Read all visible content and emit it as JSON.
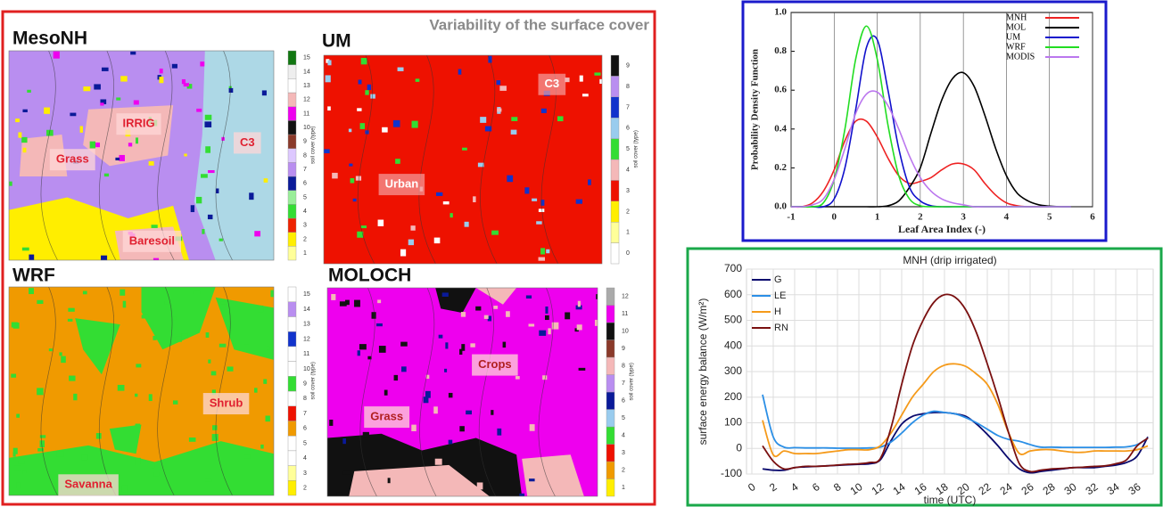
{
  "title": "Variability of the surface cover",
  "maps": [
    {
      "name": "MesoNH",
      "regions": [
        "IRRIG",
        "Grass",
        "C3",
        "Baresoil"
      ],
      "colorbar_label": "soil cover (type)",
      "ticks": [
        1,
        2,
        3,
        4,
        5,
        6,
        7,
        8,
        9,
        10,
        11,
        12,
        13,
        14,
        15
      ],
      "colors": [
        "#ffff99",
        "#ffee00",
        "#ee2200",
        "#33dd33",
        "#99ee99",
        "#0a1a99",
        "#b98ef0",
        "#ddc8ff",
        "#8a3a2a",
        "#111111",
        "#ee00ee",
        "#f4b8b8",
        "#ffffff",
        "#eeeeee",
        "#117711"
      ]
    },
    {
      "name": "UM",
      "regions": [
        "C3",
        "Urban"
      ],
      "colorbar_label": "soil cover (type)",
      "ticks": [
        0,
        1,
        2,
        3,
        4,
        5,
        6,
        7,
        8,
        9
      ],
      "colors": [
        "#ffffff",
        "#ffff99",
        "#ffee00",
        "#ee1100",
        "#f4b8b8",
        "#33dd33",
        "#99ccee",
        "#1133cc",
        "#b98ef0",
        "#111111"
      ]
    },
    {
      "name": "WRF",
      "regions": [
        "Shrub",
        "Savanna"
      ],
      "colorbar_label": "soil cover (type)",
      "ticks": [
        2,
        3,
        4,
        5,
        6,
        7,
        8,
        9,
        10,
        11,
        12,
        13,
        14,
        15
      ],
      "colors": [
        "#ffee00",
        "#ffff99",
        "#ffffff",
        "#ffffff",
        "#f09a00",
        "#ee1100",
        "#ffffff",
        "#33dd33",
        "#ffffff",
        "#ffffff",
        "#1133cc",
        "#ffffff",
        "#b98ef0",
        "#ffffff"
      ]
    },
    {
      "name": "MOLOCH",
      "regions": [
        "Crops",
        "Grass"
      ],
      "colorbar_label": "soil cover (type)",
      "ticks": [
        1,
        2,
        3,
        4,
        5,
        6,
        7,
        8,
        9,
        10,
        11,
        12
      ],
      "colors": [
        "#ffee00",
        "#f09a00",
        "#ee1100",
        "#33dd33",
        "#99ccee",
        "#0a1a99",
        "#b98ef0",
        "#f4b8b8",
        "#8a3a2a",
        "#111111",
        "#ee00ee",
        "#aaaaaa"
      ]
    }
  ],
  "chart_data": [
    {
      "type": "line",
      "xlabel": "Leaf Area Index (-)",
      "ylabel": "Probability Density Function",
      "x": [
        -1,
        -0.75,
        -0.5,
        -0.25,
        0,
        0.25,
        0.5,
        0.75,
        1,
        1.25,
        1.5,
        1.75,
        2,
        2.25,
        2.5,
        2.75,
        3,
        3.25,
        3.5,
        3.75,
        4,
        4.25,
        4.5,
        4.75,
        5,
        5.25,
        5.5
      ],
      "series": [
        {
          "name": "MNH",
          "color": "#ee2222",
          "values": [
            0,
            0,
            0.02,
            0.08,
            0.19,
            0.34,
            0.44,
            0.44,
            0.36,
            0.25,
            0.16,
            0.12,
            0.13,
            0.15,
            0.19,
            0.22,
            0.22,
            0.19,
            0.12,
            0.06,
            0.02,
            0.005,
            0,
            0,
            0,
            0,
            0
          ]
        },
        {
          "name": "MOL",
          "color": "#000000",
          "values": [
            0,
            0,
            0,
            0,
            0,
            0,
            0,
            0,
            0,
            0.005,
            0.03,
            0.1,
            0.2,
            0.38,
            0.55,
            0.66,
            0.69,
            0.62,
            0.47,
            0.3,
            0.16,
            0.07,
            0.03,
            0.01,
            0.003,
            0,
            0
          ]
        },
        {
          "name": "UM",
          "color": "#1111cc",
          "values": [
            0,
            0,
            0,
            0,
            0.04,
            0.2,
            0.5,
            0.82,
            0.86,
            0.6,
            0.3,
            0.1,
            0.03,
            0.005,
            0,
            0,
            0,
            0,
            0,
            0,
            0,
            0,
            0,
            0,
            0,
            0,
            0
          ]
        },
        {
          "name": "WRF",
          "color": "#22dd22",
          "values": [
            0,
            0,
            0,
            0.02,
            0.14,
            0.4,
            0.76,
            0.93,
            0.76,
            0.42,
            0.16,
            0.04,
            0.005,
            0,
            0,
            0,
            0,
            0,
            0,
            0,
            0,
            0,
            0,
            0,
            0,
            0,
            0
          ]
        },
        {
          "name": "MODIS",
          "color": "#bb77ee",
          "values": [
            0,
            0,
            0.01,
            0.04,
            0.14,
            0.3,
            0.48,
            0.58,
            0.59,
            0.52,
            0.4,
            0.26,
            0.15,
            0.08,
            0.04,
            0.02,
            0.01,
            0,
            0,
            0,
            0,
            0,
            0,
            0,
            0,
            0,
            0
          ]
        }
      ],
      "xlim": [
        -1,
        6
      ],
      "ylim": [
        0,
        1
      ],
      "xticks": [
        -1,
        0,
        1,
        2,
        3,
        4,
        5,
        6
      ],
      "yticks": [
        {
          "value": 0,
          "label": "0.0"
        },
        0.2,
        0.4,
        0.6,
        0.8,
        {
          "value": 1,
          "label": "1.0"
        }
      ],
      "grid": "x",
      "legend": "upper right"
    },
    {
      "type": "line",
      "title": "MNH (drip irrigated)",
      "xlabel": "time (UTC)",
      "ylabel": "surface energy balance (W/m²)",
      "x": [
        1,
        2,
        3,
        4,
        5,
        6,
        7,
        8,
        9,
        10,
        11,
        12,
        13,
        14,
        15,
        16,
        17,
        18,
        19,
        20,
        21,
        22,
        23,
        24,
        25,
        26,
        27,
        28,
        29,
        30,
        31,
        32,
        33,
        34,
        35,
        36,
        37
      ],
      "series": [
        {
          "name": "G",
          "color": "#0a0a6e",
          "values": [
            -80,
            -85,
            -85,
            -75,
            -72,
            -70,
            -68,
            -66,
            -64,
            -62,
            -60,
            -45,
            30,
            95,
            125,
            135,
            140,
            140,
            135,
            125,
            95,
            55,
            10,
            -40,
            -80,
            -95,
            -90,
            -85,
            -80,
            -75,
            -75,
            -75,
            -70,
            -65,
            -55,
            -30,
            45
          ]
        },
        {
          "name": "LE",
          "color": "#2b8fe6",
          "values": [
            210,
            45,
            5,
            3,
            2,
            2,
            2,
            1,
            1,
            1,
            2,
            5,
            25,
            60,
            100,
            130,
            145,
            140,
            135,
            120,
            100,
            75,
            50,
            35,
            28,
            15,
            5,
            5,
            4,
            4,
            4,
            4,
            4,
            5,
            6,
            15,
            40
          ]
        },
        {
          "name": "H",
          "color": "#f59a1a",
          "values": [
            110,
            -25,
            -10,
            -20,
            -20,
            -20,
            -15,
            -10,
            -5,
            -5,
            -5,
            10,
            60,
            130,
            200,
            250,
            300,
            325,
            330,
            320,
            290,
            250,
            170,
            60,
            -20,
            -10,
            -5,
            -5,
            -10,
            -15,
            -15,
            -10,
            -10,
            -10,
            -10,
            -5,
            10
          ]
        },
        {
          "name": "RN",
          "color": "#7a1010",
          "values": [
            10,
            -50,
            -80,
            -75,
            -70,
            -70,
            -68,
            -65,
            -62,
            -60,
            -55,
            -40,
            80,
            250,
            400,
            500,
            570,
            600,
            590,
            540,
            450,
            330,
            200,
            60,
            -60,
            -90,
            -85,
            -80,
            -78,
            -75,
            -73,
            -70,
            -68,
            -60,
            -45,
            10,
            40
          ]
        }
      ],
      "xlim": [
        -0.5,
        37.5
      ],
      "ylim": [
        -100,
        700
      ],
      "xticks": [
        0,
        2,
        4,
        6,
        8,
        10,
        12,
        14,
        16,
        18,
        20,
        22,
        24,
        26,
        28,
        30,
        32,
        34,
        36
      ],
      "yticks": [
        -100,
        0,
        100,
        200,
        300,
        400,
        500,
        600,
        700
      ],
      "grid": "both",
      "legend": "upper left"
    }
  ]
}
